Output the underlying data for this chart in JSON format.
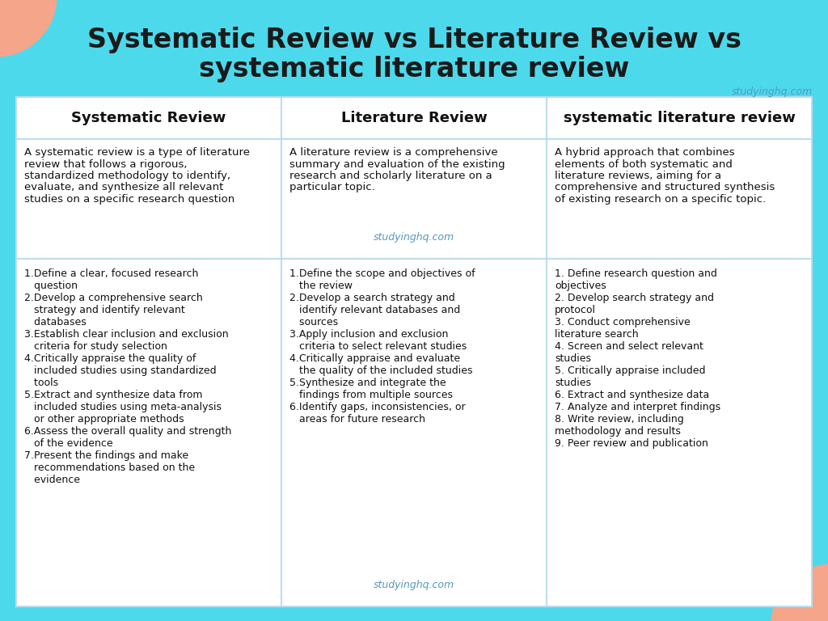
{
  "bg_color": "#4DD9EC",
  "cell_bg": "#FFFFFF",
  "title_line1": "Systematic Review vs Literature Review vs",
  "title_line2": "systematic literature review",
  "title_color": "#1a1a1a",
  "title_fontsize": 24,
  "watermark": "studyinghq.com",
  "watermark_color": "#5599BB",
  "headers": [
    "Systematic Review",
    "Literature Review",
    "systematic literature review"
  ],
  "header_fontsize": 13,
  "desc1_lines": [
    "A systematic review is a type of literature",
    "review that follows a rigorous,",
    "standardized methodology to identify,",
    "evaluate, and synthesize all relevant",
    "studies on a specific research question"
  ],
  "desc2_lines": [
    "A literature review is a comprehensive",
    "summary and evaluation of the existing",
    "research and scholarly literature on a",
    "particular topic."
  ],
  "desc3_lines": [
    "A hybrid approach that combines",
    "elements of both systematic and",
    "literature reviews, aiming for a",
    "comprehensive and structured synthesis",
    "of existing research on a specific topic."
  ],
  "col1_steps": [
    "1.Define a clear, focused research",
    "   question",
    "2.Develop a comprehensive search",
    "   strategy and identify relevant",
    "   databases",
    "3.Establish clear inclusion and exclusion",
    "   criteria for study selection",
    "4.Critically appraise the quality of",
    "   included studies using standardized",
    "   tools",
    "5.Extract and synthesize data from",
    "   included studies using meta-analysis",
    "   or other appropriate methods",
    "6.Assess the overall quality and strength",
    "   of the evidence",
    "7.Present the findings and make",
    "   recommendations based on the",
    "   evidence"
  ],
  "col2_steps": [
    "1.Define the scope and objectives of",
    "   the review",
    "2.Develop a search strategy and",
    "   identify relevant databases and",
    "   sources",
    "3.Apply inclusion and exclusion",
    "   criteria to select relevant studies",
    "4.Critically appraise and evaluate",
    "   the quality of the included studies",
    "5.Synthesize and integrate the",
    "   findings from multiple sources",
    "6.Identify gaps, inconsistencies, or",
    "   areas for future research"
  ],
  "col3_steps": [
    "1. Define research question and",
    "objectives",
    "2. Develop search strategy and",
    "protocol",
    "3. Conduct comprehensive",
    "literature search",
    "4. Screen and select relevant",
    "studies",
    "5. Critically appraise included",
    "studies",
    "6. Extract and synthesize data",
    "7. Analyze and interpret findings",
    "8. Write review, including",
    "methodology and results",
    "9. Peer review and publication"
  ],
  "coral_color": "#F4A58A",
  "cell_border_color": "#BBDDEE",
  "cell_border_lw": 1.5
}
